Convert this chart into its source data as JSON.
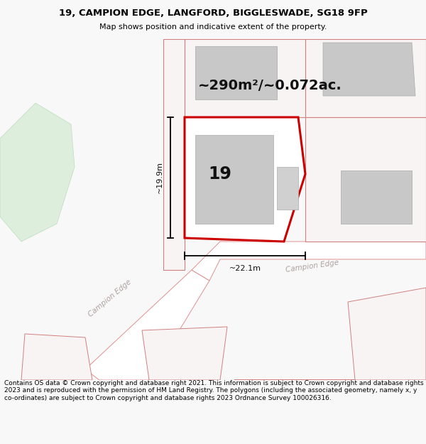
{
  "title_line1": "19, CAMPION EDGE, LANGFORD, BIGGLESWADE, SG18 9FP",
  "title_line2": "Map shows position and indicative extent of the property.",
  "footer_text": "Contains OS data © Crown copyright and database right 2021. This information is subject to Crown copyright and database rights 2023 and is reproduced with the permission of HM Land Registry. The polygons (including the associated geometry, namely x, y co-ordinates) are subject to Crown copyright and database rights 2023 Ordnance Survey 100026316.",
  "area_label": "~290m²/~0.072ac.",
  "width_label": "~22.1m",
  "height_label": "~19.9m",
  "property_number": "19",
  "bg_color": "#f8f8f8",
  "map_bg": "#f0f0f0",
  "plot_red": "#cc0000",
  "building_gray": "#c8c8c8",
  "road_outline": "#e08080",
  "green_fill": "#ddeedd",
  "green_edge": "#bbddbb",
  "white": "#ffffff",
  "plot_fill": "#e8e8e8",
  "plot_edge": "#d08080"
}
